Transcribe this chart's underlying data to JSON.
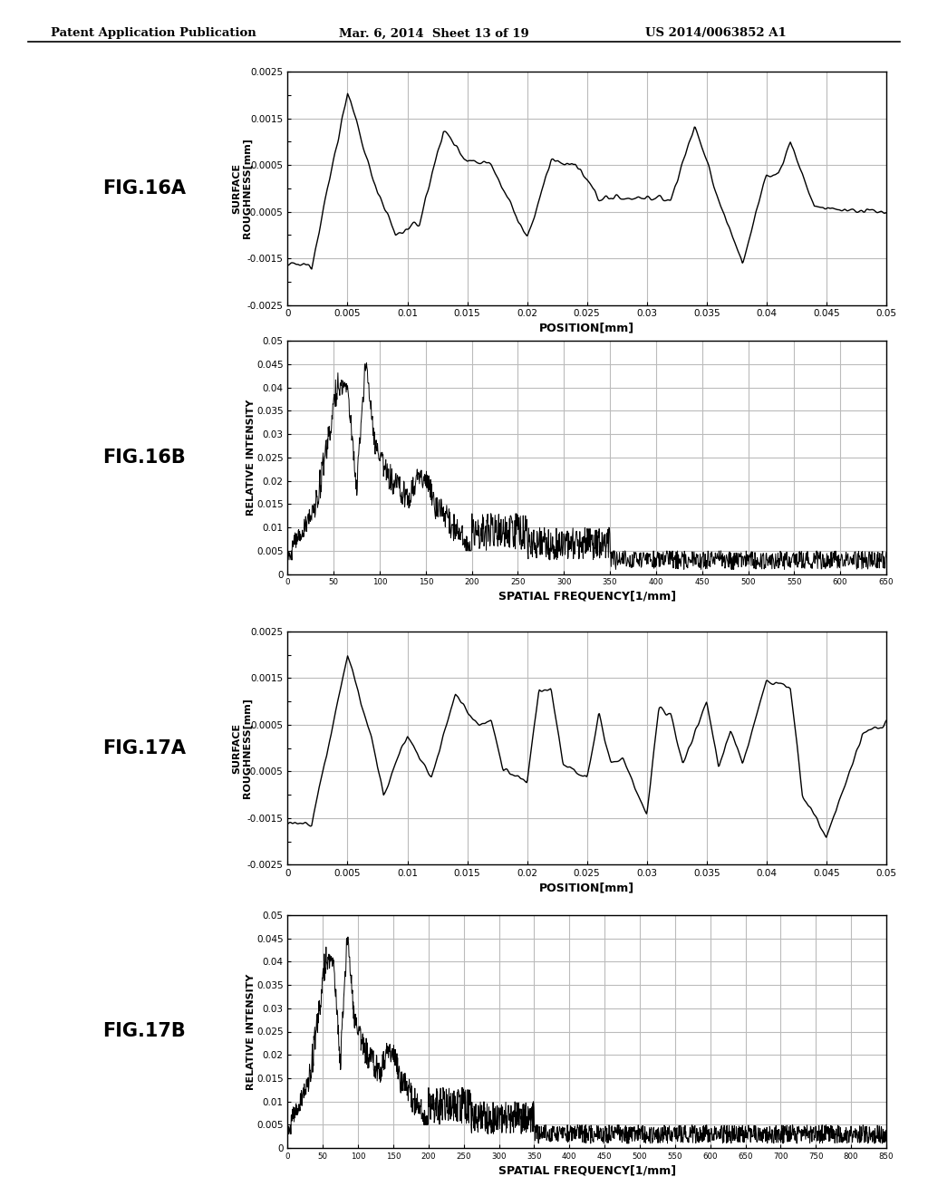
{
  "header_left": "Patent Application Publication",
  "header_mid": "Mar. 6, 2014  Sheet 13 of 19",
  "header_right": "US 2014/0063852 A1",
  "fig_labels": [
    "FIG.16A",
    "FIG.16B",
    "FIG.17A",
    "FIG.17B"
  ],
  "background_color": "#ffffff",
  "line_color": "#000000",
  "grid_color": "#bbbbbb",
  "plots": [
    {
      "type": "surface_roughness",
      "ylabel_line1": "SURFACE",
      "ylabel_line2": "ROUGHNESS[mm]",
      "xlabel": "POSITION[mm]",
      "xlim": [
        0,
        0.05
      ],
      "ylim": [
        -0.0025,
        0.0025
      ],
      "yticks": [
        -0.0025,
        -0.002,
        -0.0015,
        -0.001,
        -0.0005,
        0,
        0.0005,
        0.001,
        0.0015,
        0.002,
        0.0025
      ],
      "ytick_labels": [
        "-0.0025",
        "",
        "-0.0015",
        "",
        "-0.0005",
        "",
        "0.0005",
        "",
        "0.0015",
        "",
        "0.0025"
      ],
      "xticks": [
        0,
        0.005,
        0.01,
        0.015,
        0.02,
        0.025,
        0.03,
        0.035,
        0.04,
        0.045,
        0.05
      ],
      "xtick_labels": [
        "0",
        "0.005",
        "0.01",
        "0.015",
        "0.02",
        "0.025",
        "0.03",
        "0.035",
        "0.04",
        "0.045",
        "0.05"
      ],
      "grid_yticks": [
        -0.0015,
        -0.0005,
        0.0005,
        0.0015
      ],
      "waveform": "16A"
    },
    {
      "type": "relative_intensity",
      "ylabel_line1": "RELATIVE INTENSITY",
      "xlabel": "SPATIAL FREQUENCY[1/mm]",
      "xlim": [
        0,
        650
      ],
      "ylim": [
        0,
        0.05
      ],
      "yticks": [
        0,
        0.005,
        0.01,
        0.015,
        0.02,
        0.025,
        0.03,
        0.035,
        0.04,
        0.045,
        0.05
      ],
      "ytick_labels": [
        "0",
        "0.005",
        "0.01",
        "0.015",
        "0.02",
        "0.025",
        "0.03",
        "0.035",
        "0.04",
        "0.045",
        "0.05"
      ],
      "xticks": [
        0,
        50,
        100,
        150,
        200,
        250,
        300,
        350,
        400,
        450,
        500,
        550,
        600,
        650
      ],
      "xtick_labels": [
        "0",
        "50",
        "100",
        "150",
        "200",
        "250",
        "300",
        "350",
        "400",
        "450",
        "500",
        "550",
        "600",
        "650"
      ],
      "waveform": "16B"
    },
    {
      "type": "surface_roughness",
      "ylabel_line1": "SURFACE",
      "ylabel_line2": "ROUGHNESS[mm]",
      "xlabel": "POSITION[mm]",
      "xlim": [
        0,
        0.05
      ],
      "ylim": [
        -0.0025,
        0.0025
      ],
      "yticks": [
        -0.0025,
        -0.002,
        -0.0015,
        -0.001,
        -0.0005,
        0,
        0.0005,
        0.001,
        0.0015,
        0.002,
        0.0025
      ],
      "ytick_labels": [
        "-0.0025",
        "",
        "-0.0015",
        "",
        "-0.0005",
        "",
        "0.0005",
        "",
        "0.0015",
        "",
        "0.0025"
      ],
      "xticks": [
        0,
        0.005,
        0.01,
        0.015,
        0.02,
        0.025,
        0.03,
        0.035,
        0.04,
        0.045,
        0.05
      ],
      "xtick_labels": [
        "0",
        "0.005",
        "0.01",
        "0.015",
        "0.02",
        "0.025",
        "0.03",
        "0.035",
        "0.04",
        "0.045",
        "0.05"
      ],
      "grid_yticks": [
        -0.0015,
        -0.0005,
        0.0005,
        0.0015
      ],
      "waveform": "17A"
    },
    {
      "type": "relative_intensity",
      "ylabel_line1": "RELATIVE INTENSITY",
      "xlabel": "SPATIAL FREQUENCY[1/mm]",
      "xlim": [
        0,
        850
      ],
      "ylim": [
        0,
        0.05
      ],
      "yticks": [
        0,
        0.005,
        0.01,
        0.015,
        0.02,
        0.025,
        0.03,
        0.035,
        0.04,
        0.045,
        0.05
      ],
      "ytick_labels": [
        "0",
        "0.005",
        "0.01",
        "0.015",
        "0.02",
        "0.025",
        "0.03",
        "0.035",
        "0.04",
        "0.045",
        "0.05"
      ],
      "xticks": [
        0,
        50,
        100,
        150,
        200,
        250,
        300,
        350,
        400,
        450,
        500,
        550,
        600,
        650,
        700,
        750,
        800,
        850
      ],
      "xtick_labels": [
        "0",
        "50",
        "100",
        "150",
        "200",
        "250",
        "300",
        "350",
        "400",
        "450",
        "500",
        "550",
        "600",
        "650",
        "700",
        "750",
        "800",
        "850"
      ],
      "waveform": "17B"
    }
  ]
}
